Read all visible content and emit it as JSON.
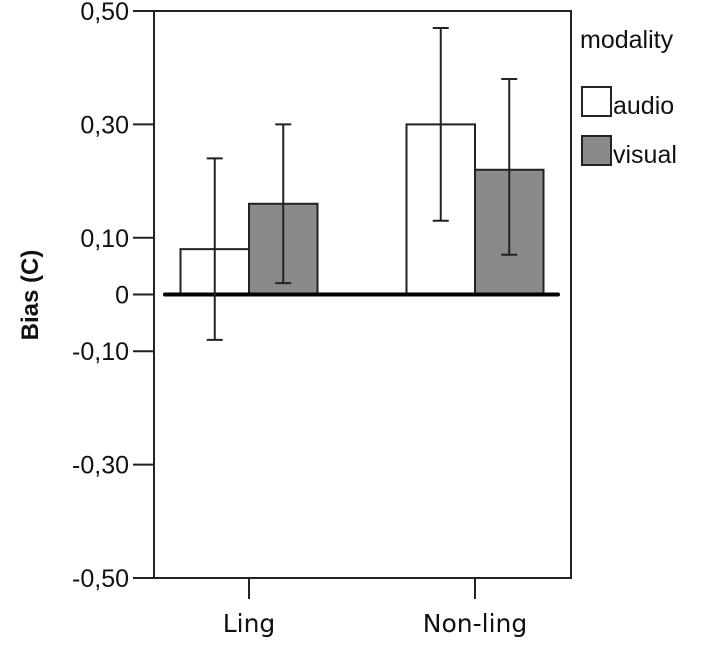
{
  "chart_data": {
    "type": "bar",
    "title": "",
    "xlabel": "",
    "ylabel": "Bias (C)",
    "ylim": [
      -0.5,
      0.5
    ],
    "yticks": [
      {
        "value": 0.5,
        "label": "0,50"
      },
      {
        "value": 0.3,
        "label": "0,30"
      },
      {
        "value": 0.1,
        "label": "0,10"
      },
      {
        "value": 0,
        "label": "0"
      },
      {
        "value": -0.1,
        "label": "-0,10"
      },
      {
        "value": -0.3,
        "label": "-0,30"
      },
      {
        "value": -0.5,
        "label": "-0,50"
      }
    ],
    "categories": [
      "Ling",
      "Non-ling"
    ],
    "legend_title": "modality",
    "legend_position": "right",
    "grid": false,
    "error_bars": true,
    "series": [
      {
        "name": "audio",
        "color": "#ffffff",
        "values": [
          0.08,
          0.3
        ],
        "ci_low": [
          -0.08,
          0.13
        ],
        "ci_high": [
          0.24,
          0.47
        ]
      },
      {
        "name": "visual",
        "color": "#8a8a8a",
        "values": [
          0.16,
          0.22
        ],
        "ci_low": [
          0.02,
          0.07
        ],
        "ci_high": [
          0.3,
          0.38
        ]
      }
    ]
  }
}
